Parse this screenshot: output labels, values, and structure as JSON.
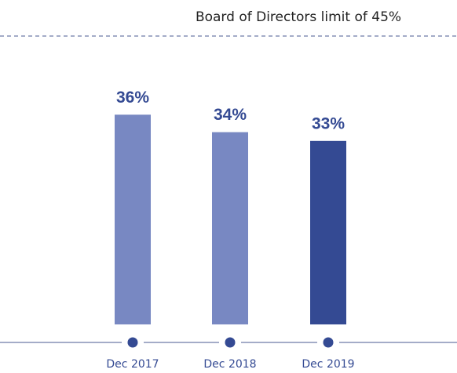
{
  "chart_data": {
    "type": "bar",
    "limit": {
      "label": "Board of Directors limit of 45%",
      "value": 45
    },
    "categories": [
      "Dec 2017",
      "Dec 2018",
      "Dec 2019"
    ],
    "values": [
      36,
      34,
      33
    ],
    "value_labels": [
      "36%",
      "34%",
      "33%"
    ],
    "colors": [
      "#7888c2",
      "#7888c2",
      "#344a93"
    ],
    "ylim": [
      12,
      45
    ]
  }
}
